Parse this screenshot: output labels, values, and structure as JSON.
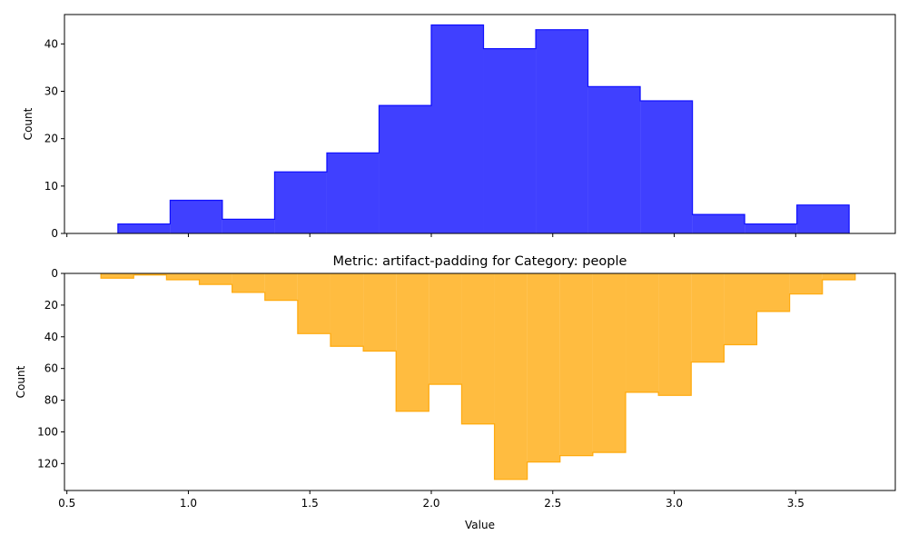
{
  "chart_data": [
    {
      "type": "histogram",
      "subplot": "top",
      "title": "",
      "xlabel": "",
      "ylabel": "Count",
      "color": "#0000ff",
      "fill_opacity": 0.75,
      "xlim": [
        0.49,
        3.91
      ],
      "ylim": [
        0,
        46.2
      ],
      "xticks": [
        0.5,
        1.0,
        1.5,
        2.0,
        2.5,
        3.0,
        3.5
      ],
      "show_xtick_labels": false,
      "yticks": [
        0,
        10,
        20,
        30,
        40
      ],
      "ytick_labels": [
        "0",
        "10",
        "20",
        "30",
        "40"
      ],
      "grid": false,
      "bin_edges": [
        0.71,
        0.925,
        1.14,
        1.355,
        1.57,
        1.785,
        2.0,
        2.215,
        2.43,
        2.645,
        2.86,
        3.075,
        3.29,
        3.505,
        3.72
      ],
      "counts": [
        2,
        7,
        3,
        13,
        17,
        27,
        44,
        39,
        43,
        31,
        28,
        4,
        2,
        6
      ]
    },
    {
      "type": "histogram",
      "subplot": "bottom",
      "title": "Metric: artifact-padding for Category: people",
      "xlabel": "Value",
      "ylabel": "Count",
      "color": "#ffa500",
      "fill_opacity": 0.75,
      "y_inverted": true,
      "xlim": [
        0.49,
        3.91
      ],
      "ylim": [
        0,
        137
      ],
      "xticks": [
        0.5,
        1.0,
        1.5,
        2.0,
        2.5,
        3.0,
        3.5
      ],
      "xtick_labels": [
        "0.5",
        "1.0",
        "1.5",
        "2.0",
        "2.5",
        "3.0",
        "3.5"
      ],
      "yticks": [
        0,
        20,
        40,
        60,
        80,
        100,
        120
      ],
      "ytick_labels": [
        "0",
        "20",
        "40",
        "60",
        "80",
        "100",
        "120"
      ],
      "grid": false,
      "bin_edges": [
        0.64,
        0.775,
        0.91,
        1.045,
        1.18,
        1.315,
        1.45,
        1.585,
        1.72,
        1.855,
        1.99,
        2.125,
        2.26,
        2.395,
        2.53,
        2.665,
        2.8,
        2.935,
        3.07,
        3.205,
        3.34,
        3.475,
        3.61,
        3.745
      ],
      "counts": [
        3,
        1,
        4,
        7,
        12,
        17,
        38,
        46,
        49,
        87,
        70,
        95,
        130,
        119,
        115,
        113,
        75,
        77,
        56,
        45,
        24,
        13,
        4
      ]
    }
  ]
}
